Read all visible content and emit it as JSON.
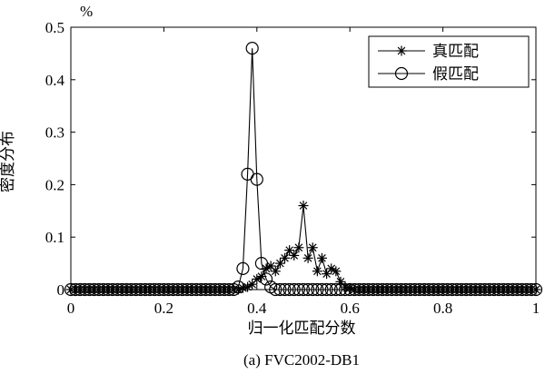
{
  "chart_data": {
    "type": "line",
    "xlabel": "归一化匹配分数",
    "ylabel": "密度分布",
    "yunit": "%",
    "xlim": [
      0,
      1
    ],
    "ylim": [
      0,
      0.5
    ],
    "xticks": [
      "0",
      "0.2",
      "0.4",
      "0.6",
      "0.8",
      "1"
    ],
    "yticks": [
      "0",
      "0.1",
      "0.2",
      "0.3",
      "0.4",
      "0.5"
    ],
    "grid": false,
    "legend_position": "top-right",
    "caption": "(a) FVC2002-DB1",
    "series": [
      {
        "name": "真匹配",
        "marker": "asterisk",
        "x": [
          0,
          0.01,
          0.02,
          0.03,
          0.04,
          0.05,
          0.06,
          0.07,
          0.08,
          0.09,
          0.1,
          0.11,
          0.12,
          0.13,
          0.14,
          0.15,
          0.16,
          0.17,
          0.18,
          0.19,
          0.2,
          0.21,
          0.22,
          0.23,
          0.24,
          0.25,
          0.26,
          0.27,
          0.28,
          0.29,
          0.3,
          0.31,
          0.32,
          0.33,
          0.34,
          0.35,
          0.36,
          0.37,
          0.38,
          0.39,
          0.4,
          0.41,
          0.42,
          0.43,
          0.44,
          0.45,
          0.46,
          0.47,
          0.48,
          0.49,
          0.5,
          0.51,
          0.52,
          0.53,
          0.54,
          0.55,
          0.56,
          0.57,
          0.58,
          0.59,
          0.6,
          0.61,
          0.62,
          0.63,
          0.64,
          0.65,
          0.66,
          0.67,
          0.68,
          0.69,
          0.7,
          0.71,
          0.72,
          0.73,
          0.74,
          0.75,
          0.76,
          0.77,
          0.78,
          0.79,
          0.8,
          0.81,
          0.82,
          0.83,
          0.84,
          0.85,
          0.86,
          0.87,
          0.88,
          0.89,
          0.9,
          0.91,
          0.92,
          0.93,
          0.94,
          0.95,
          0.96,
          0.97,
          0.98,
          0.99,
          1
        ],
        "y": [
          0,
          0,
          0,
          0,
          0,
          0,
          0,
          0,
          0,
          0,
          0,
          0,
          0,
          0,
          0,
          0,
          0,
          0,
          0,
          0,
          0,
          0,
          0,
          0,
          0,
          0,
          0,
          0,
          0,
          0,
          0,
          0,
          0,
          0,
          0,
          0,
          0,
          0.003,
          0.005,
          0.01,
          0.02,
          0.025,
          0.04,
          0.045,
          0.035,
          0.05,
          0.06,
          0.075,
          0.065,
          0.08,
          0.16,
          0.06,
          0.08,
          0.035,
          0.06,
          0.03,
          0.04,
          0.035,
          0.015,
          0.005,
          0.003,
          0,
          0,
          0,
          0,
          0,
          0,
          0,
          0,
          0,
          0,
          0,
          0,
          0,
          0,
          0,
          0,
          0,
          0,
          0,
          0,
          0,
          0,
          0,
          0,
          0,
          0,
          0,
          0,
          0,
          0,
          0,
          0,
          0,
          0,
          0,
          0,
          0,
          0,
          0,
          0
        ]
      },
      {
        "name": "假匹配",
        "marker": "circle",
        "x": [
          0,
          0.01,
          0.02,
          0.03,
          0.04,
          0.05,
          0.06,
          0.07,
          0.08,
          0.09,
          0.1,
          0.11,
          0.12,
          0.13,
          0.14,
          0.15,
          0.16,
          0.17,
          0.18,
          0.19,
          0.2,
          0.21,
          0.22,
          0.23,
          0.24,
          0.25,
          0.26,
          0.27,
          0.28,
          0.29,
          0.3,
          0.31,
          0.32,
          0.33,
          0.34,
          0.35,
          0.36,
          0.37,
          0.38,
          0.39,
          0.4,
          0.41,
          0.42,
          0.43,
          0.44,
          0.45,
          0.46,
          0.47,
          0.48,
          0.49,
          0.5,
          0.51,
          0.52,
          0.53,
          0.54,
          0.55,
          0.56,
          0.57,
          0.58,
          0.59,
          0.6,
          0.61,
          0.62,
          0.63,
          0.64,
          0.65,
          0.66,
          0.67,
          0.68,
          0.69,
          0.7,
          0.71,
          0.72,
          0.73,
          0.74,
          0.75,
          0.76,
          0.77,
          0.78,
          0.79,
          0.8,
          0.81,
          0.82,
          0.83,
          0.84,
          0.85,
          0.86,
          0.87,
          0.88,
          0.89,
          0.9,
          0.91,
          0.92,
          0.93,
          0.94,
          0.95,
          0.96,
          0.97,
          0.98,
          0.99,
          1
        ],
        "y": [
          0,
          0,
          0,
          0,
          0,
          0,
          0,
          0,
          0,
          0,
          0,
          0,
          0,
          0,
          0,
          0,
          0,
          0,
          0,
          0,
          0,
          0,
          0,
          0,
          0,
          0,
          0,
          0,
          0,
          0,
          0,
          0,
          0,
          0,
          0,
          0,
          0.005,
          0.04,
          0.22,
          0.46,
          0.21,
          0.05,
          0.02,
          0.005,
          0,
          0,
          0,
          0,
          0,
          0,
          0,
          0,
          0,
          0,
          0,
          0,
          0,
          0,
          0,
          0,
          0,
          0,
          0,
          0,
          0,
          0,
          0,
          0,
          0,
          0,
          0,
          0,
          0,
          0,
          0,
          0,
          0,
          0,
          0,
          0,
          0,
          0,
          0,
          0,
          0,
          0,
          0,
          0,
          0,
          0,
          0,
          0,
          0,
          0,
          0,
          0,
          0,
          0,
          0,
          0,
          0
        ]
      }
    ]
  }
}
